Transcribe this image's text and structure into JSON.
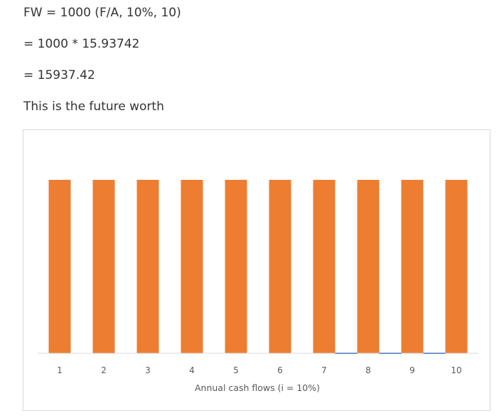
{
  "text": {
    "line1": "FW = 1000 (F/A, 10%, 10)",
    "line2": "= 1000 * 15.93742",
    "line3": "= 15937.42",
    "line4": "This is the future worth"
  },
  "colors": {
    "bar": "#ED7D31",
    "axis": "#D9D9D9",
    "secondary_line": "#4472C4",
    "text": "#333333",
    "tick_text": "#595959"
  },
  "chart_data": {
    "type": "bar",
    "title": "",
    "xlabel": "Annual cash flows (i = 10%)",
    "ylabel": "",
    "categories": [
      "1",
      "2",
      "3",
      "4",
      "5",
      "6",
      "7",
      "8",
      "9",
      "10"
    ],
    "series": [
      {
        "values": [
          1000,
          1000,
          1000,
          1000,
          1000,
          1000,
          1000,
          1000,
          1000,
          1000
        ]
      }
    ],
    "ylim": [
      0,
      1000
    ],
    "grid": false,
    "legend": "none"
  }
}
